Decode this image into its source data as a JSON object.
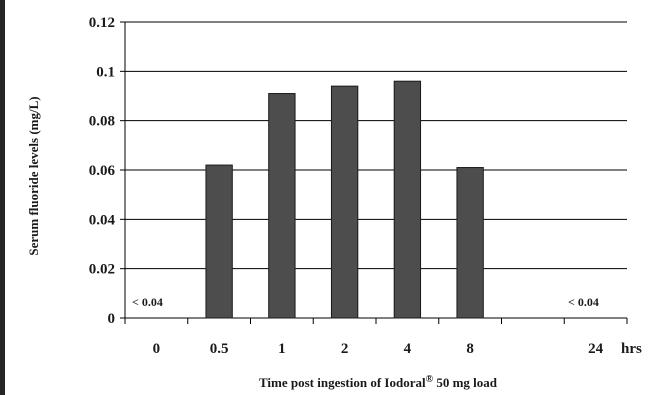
{
  "chart_data": {
    "type": "bar",
    "categories": [
      "0",
      "0.5",
      "1",
      "2",
      "4",
      "8",
      "",
      "24"
    ],
    "values": [
      null,
      0.062,
      0.091,
      0.094,
      0.096,
      0.061,
      null,
      null
    ],
    "ylim": [
      0,
      0.12
    ],
    "yticks": [
      "0",
      "0.02",
      "0.04",
      "0.06",
      "0.08",
      "0.1",
      "0.12"
    ],
    "ylabel": "Serum fluoride levels  (mg/L)",
    "xlabel_prefix": "Time post ingestion of Iodoral",
    "xlabel_mark": "®",
    "xlabel_suffix": " 50 mg load",
    "x_unit": "hrs",
    "notes": [
      "< 0.04",
      "< 0.04"
    ],
    "grid": true,
    "bar_color": "#4d4d4d",
    "grid_color": "#000000"
  }
}
